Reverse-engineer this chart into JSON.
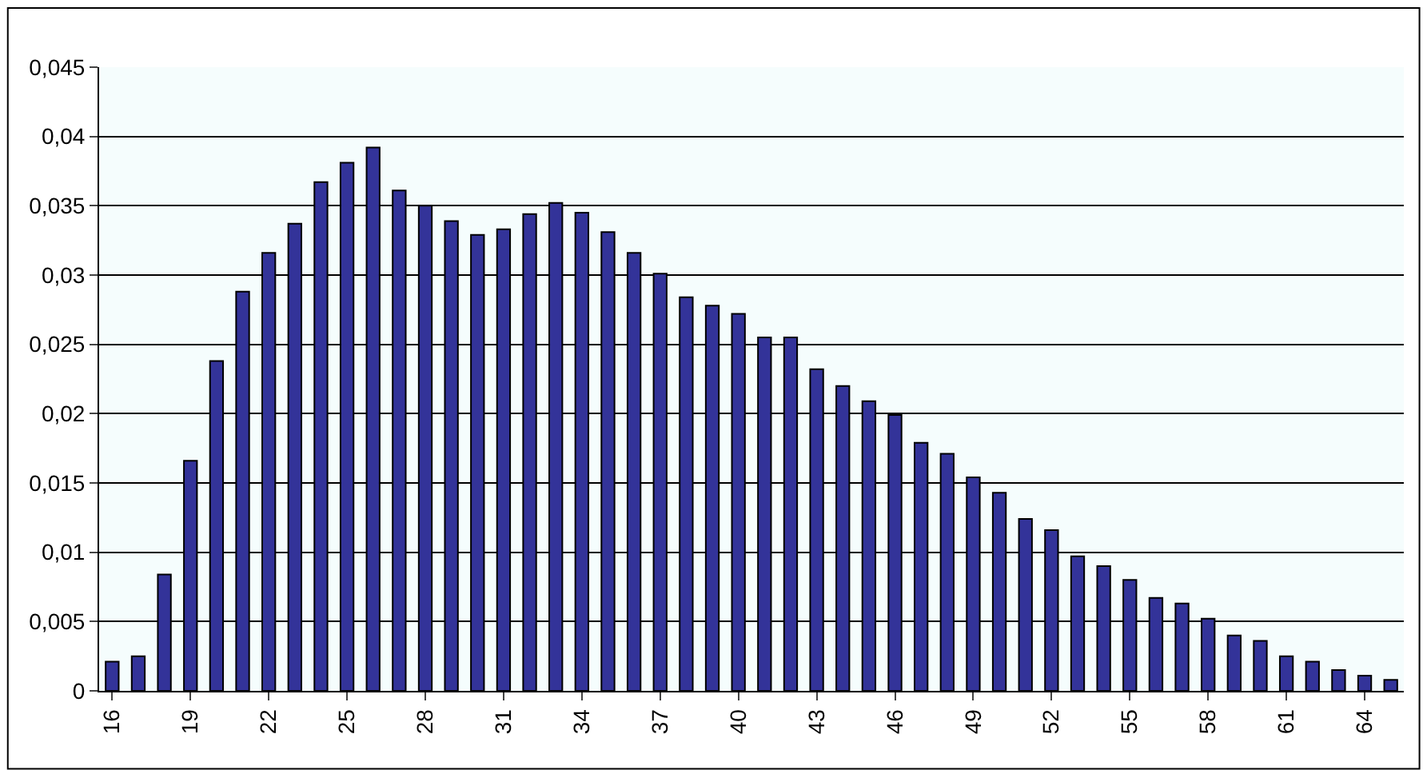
{
  "chart_data": {
    "type": "bar",
    "categories": [
      "16",
      null,
      null,
      "19",
      null,
      null,
      "22",
      null,
      null,
      "25",
      null,
      null,
      "28",
      null,
      null,
      "31",
      null,
      null,
      "34",
      null,
      null,
      "37",
      null,
      null,
      "40",
      null,
      null,
      "43",
      null,
      null,
      "46",
      null,
      null,
      "49",
      null,
      null,
      "52",
      null,
      null,
      "55",
      null,
      null,
      "58",
      null,
      null,
      "61",
      null,
      null,
      "64",
      null
    ],
    "values": [
      0.0021,
      0.0025,
      0.0084,
      0.0166,
      0.0238,
      0.0288,
      0.0316,
      0.0337,
      0.0367,
      0.0381,
      0.0392,
      0.0361,
      0.035,
      0.0339,
      0.0329,
      0.0333,
      0.0344,
      0.0352,
      0.0345,
      0.0331,
      0.0316,
      0.0301,
      0.0284,
      0.0278,
      0.0272,
      0.0255,
      0.0255,
      0.0232,
      0.022,
      0.0209,
      0.0199,
      0.0179,
      0.0171,
      0.0154,
      0.0143,
      0.0124,
      0.0116,
      0.0097,
      0.009,
      0.008,
      0.0067,
      0.0063,
      0.0052,
      0.004,
      0.0036,
      0.0025,
      0.0021,
      0.0015,
      0.0011,
      0.0008
    ],
    "color": "#333399",
    "ylim": [
      0,
      0.045
    ],
    "yticks": [
      0,
      {
        "value": 0.005,
        "label": "0,005"
      },
      {
        "value": 0.01,
        "label": "0,01"
      },
      {
        "value": 0.015,
        "label": "0,015"
      },
      {
        "value": 0.02,
        "label": "0,02"
      },
      {
        "value": 0.025,
        "label": "0,025"
      },
      {
        "value": 0.03,
        "label": "0,03"
      },
      {
        "value": 0.035,
        "label": "0,035"
      },
      {
        "value": 0.04,
        "label": "0,04"
      },
      {
        "value": 0.045,
        "label": "0,045"
      }
    ],
    "grid": "y",
    "legend": false
  }
}
